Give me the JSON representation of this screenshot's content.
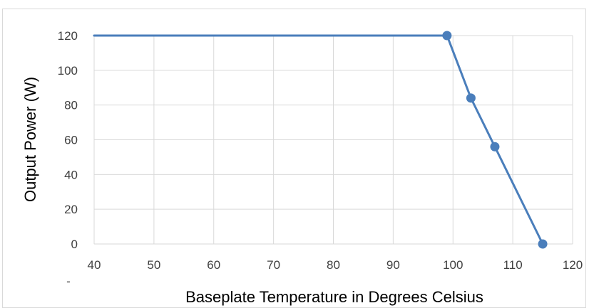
{
  "chart_data": {
    "type": "line",
    "title": "",
    "xlabel": "Baseplate Temperature in Degrees Celsius",
    "ylabel": "Output Power (W)",
    "xlim": [
      40,
      120
    ],
    "ylim": [
      0,
      120
    ],
    "x_ticks": [
      "40",
      "50",
      "60",
      "70",
      "80",
      "90",
      "100",
      "110",
      "120"
    ],
    "y_ticks": [
      "0",
      "20",
      "40",
      "60",
      "80",
      "100",
      "120"
    ],
    "extra_label": "-",
    "grid": true,
    "legend": "none",
    "series": [
      {
        "x": [
          40,
          99,
          103,
          107,
          115
        ],
        "y": [
          120,
          120,
          84,
          56,
          0
        ],
        "markers": [
          false,
          true,
          true,
          true,
          true
        ],
        "color": "#4a7ebb"
      }
    ]
  }
}
